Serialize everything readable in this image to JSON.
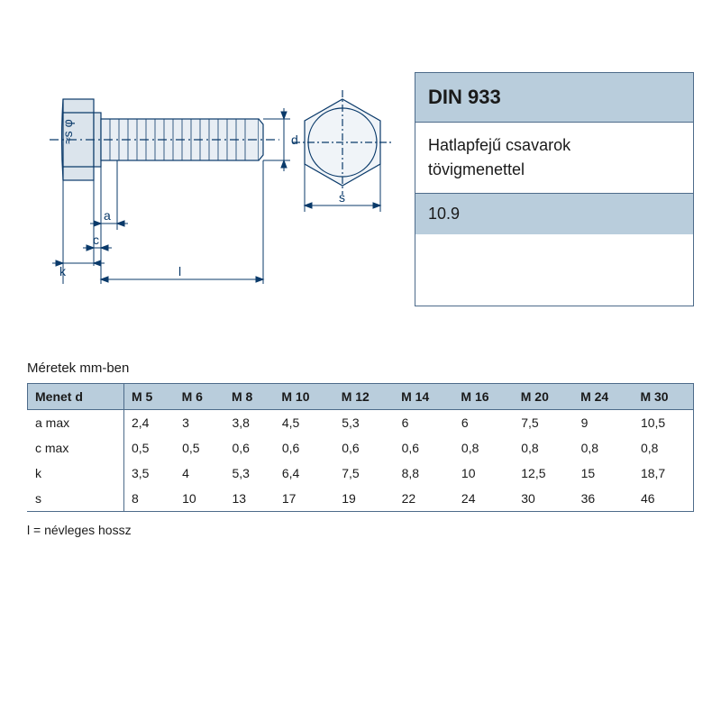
{
  "info": {
    "title": "DIN 933",
    "desc_line1": "Hatlapfejű csavarok",
    "desc_line2": "tövigmenettel",
    "grade": "10.9"
  },
  "units_label": "Méretek mm-ben",
  "footnote": "l = névleges hossz",
  "diagram": {
    "stroke": "#0a3a6a",
    "fill_light": "#e8eef4",
    "fill_med": "#c5d4e1",
    "bg": "#ffffff",
    "labels": {
      "a": "a",
      "c": "c",
      "k": "k",
      "l": "l",
      "d": "d",
      "s": "s",
      "s_phi": "≈s φ"
    }
  },
  "table": {
    "header_bg": "#b9cddc",
    "columns": [
      "Menet d",
      "M 5",
      "M 6",
      "M 8",
      "M 10",
      "M 12",
      "M 14",
      "M 16",
      "M 20",
      "M 24",
      "M 30"
    ],
    "rows": [
      {
        "label": "a max",
        "values": [
          "2,4",
          "3",
          "3,8",
          "4,5",
          "5,3",
          "6",
          "6",
          "7,5",
          "9",
          "10,5"
        ]
      },
      {
        "label": "c max",
        "values": [
          "0,5",
          "0,5",
          "0,6",
          "0,6",
          "0,6",
          "0,6",
          "0,8",
          "0,8",
          "0,8",
          "0,8"
        ]
      },
      {
        "label": "k",
        "values": [
          "3,5",
          "4",
          "5,3",
          "6,4",
          "7,5",
          "8,8",
          "10",
          "12,5",
          "15",
          "18,7"
        ]
      },
      {
        "label": "s",
        "values": [
          "8",
          "10",
          "13",
          "17",
          "19",
          "22",
          "24",
          "30",
          "36",
          "46"
        ]
      }
    ]
  }
}
